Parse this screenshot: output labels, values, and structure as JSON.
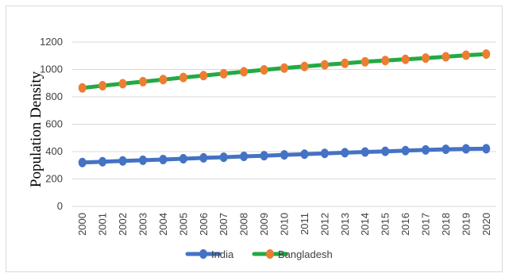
{
  "chart_data": {
    "type": "line",
    "title": "",
    "xlabel": "",
    "ylabel": "Population Density",
    "x": [
      "2000",
      "2001",
      "2002",
      "2003",
      "2004",
      "2005",
      "2006",
      "2007",
      "2008",
      "2009",
      "2010",
      "2011",
      "2012",
      "2013",
      "2014",
      "2015",
      "2016",
      "2017",
      "2018",
      "2019",
      "2020"
    ],
    "ylim": [
      0,
      1200
    ],
    "yticks": [
      0,
      200,
      400,
      600,
      800,
      1000,
      1200
    ],
    "grid": true,
    "legend_position": "bottom",
    "series": [
      {
        "name": "India",
        "line_color": "#4472c4",
        "marker_color": "#4472c4",
        "values": [
          320,
          326,
          332,
          337,
          342,
          348,
          354,
          359,
          365,
          370,
          376,
          381,
          387,
          392,
          397,
          402,
          407,
          412,
          417,
          420,
          421
        ]
      },
      {
        "name": "Bangladesh",
        "line_color": "#22aa44",
        "marker_color": "#ed7d31",
        "values": [
          865,
          881,
          896,
          911,
          926,
          941,
          955,
          969,
          983,
          997,
          1010,
          1022,
          1034,
          1045,
          1056,
          1065,
          1074,
          1083,
          1093,
          1104,
          1112
        ]
      }
    ]
  }
}
